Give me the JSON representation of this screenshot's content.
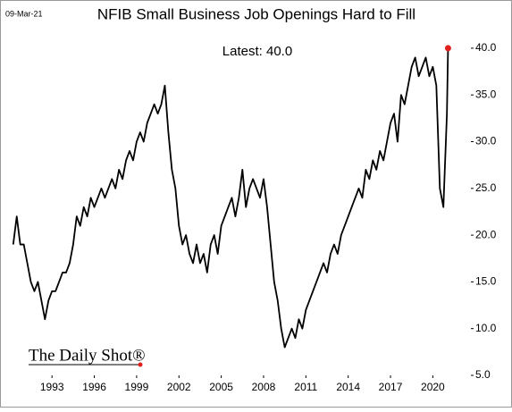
{
  "chart_data": {
    "type": "line",
    "title": "NFIB Small Business Job Openings Hard to Fill",
    "date_label": "09-Mar-21",
    "annotation": "Latest:  40.0",
    "watermark": "The Daily Shot®",
    "x": [
      1990.25,
      1990.5,
      1990.75,
      1991,
      1991.25,
      1991.5,
      1991.75,
      1992,
      1992.25,
      1992.5,
      1992.75,
      1993,
      1993.25,
      1993.5,
      1993.75,
      1994,
      1994.25,
      1994.5,
      1994.75,
      1995,
      1995.25,
      1995.5,
      1995.75,
      1996,
      1996.25,
      1996.5,
      1996.75,
      1997,
      1997.25,
      1997.5,
      1997.75,
      1998,
      1998.25,
      1998.5,
      1998.75,
      1999,
      1999.25,
      1999.5,
      1999.75,
      2000,
      2000.25,
      2000.5,
      2000.75,
      2001,
      2001.25,
      2001.5,
      2001.75,
      2002,
      2002.25,
      2002.5,
      2002.75,
      2003,
      2003.25,
      2003.5,
      2003.75,
      2004,
      2004.25,
      2004.5,
      2004.75,
      2005,
      2005.25,
      2005.5,
      2005.75,
      2006,
      2006.25,
      2006.5,
      2006.75,
      2007,
      2007.25,
      2007.5,
      2007.75,
      2008,
      2008.25,
      2008.5,
      2008.75,
      2009,
      2009.25,
      2009.5,
      2009.75,
      2010,
      2010.25,
      2010.5,
      2010.75,
      2011,
      2011.25,
      2011.5,
      2011.75,
      2012,
      2012.25,
      2012.5,
      2012.75,
      2013,
      2013.25,
      2013.5,
      2013.75,
      2014,
      2014.25,
      2014.5,
      2014.75,
      2015,
      2015.25,
      2015.5,
      2015.75,
      2016,
      2016.25,
      2016.5,
      2016.75,
      2017,
      2017.25,
      2017.5,
      2017.75,
      2018,
      2018.25,
      2018.5,
      2018.75,
      2019,
      2019.25,
      2019.5,
      2019.75,
      2020,
      2020.25,
      2020.5,
      2020.75,
      2021,
      2021.08
    ],
    "series": [
      {
        "name": "Job Openings Hard to Fill",
        "color": "#000000",
        "values": [
          19,
          22,
          19,
          19,
          17,
          15,
          14,
          15,
          13,
          11,
          13,
          14,
          14,
          15,
          16,
          16,
          17,
          19,
          22,
          21,
          23,
          22,
          24,
          23,
          24,
          25,
          24,
          25,
          26,
          25,
          27,
          26,
          28,
          29,
          28,
          30,
          31,
          30,
          32,
          33,
          34,
          33,
          34,
          36,
          31,
          27,
          25,
          21,
          19,
          20,
          18,
          17,
          19,
          17,
          18,
          16,
          19,
          20,
          18,
          21,
          22,
          23,
          24,
          22,
          24,
          27,
          23,
          25,
          26,
          25,
          24,
          26,
          23,
          19,
          15,
          13,
          10,
          8,
          9,
          10,
          9,
          11,
          10,
          12,
          13,
          14,
          15,
          16,
          17,
          16,
          18,
          19,
          18,
          20,
          21,
          22,
          23,
          24,
          25,
          24,
          27,
          26,
          28,
          27,
          29,
          28,
          30,
          32,
          33,
          30,
          35,
          34,
          36,
          38,
          39,
          37,
          38,
          39,
          37,
          38,
          36,
          25,
          23,
          33,
          40
        ]
      }
    ],
    "highlight_last": true,
    "highlight_color": "#e0201c",
    "xlim": [
      1990.2,
      2022.7
    ],
    "xticks": [
      1993,
      1996,
      1999,
      2002,
      2005,
      2008,
      2011,
      2014,
      2017,
      2020
    ],
    "ylim": [
      5,
      42
    ],
    "yticks": [
      {
        "value": 5,
        "label": "5.0"
      },
      {
        "value": 10,
        "label": "10.0"
      },
      {
        "value": 15,
        "label": "15.0"
      },
      {
        "value": 20,
        "label": "20.0"
      },
      {
        "value": 25,
        "label": "25.0"
      },
      {
        "value": 30,
        "label": "30.0"
      },
      {
        "value": 35,
        "label": "35.0"
      },
      {
        "value": 40,
        "label": "40.0"
      }
    ],
    "grid": false
  }
}
